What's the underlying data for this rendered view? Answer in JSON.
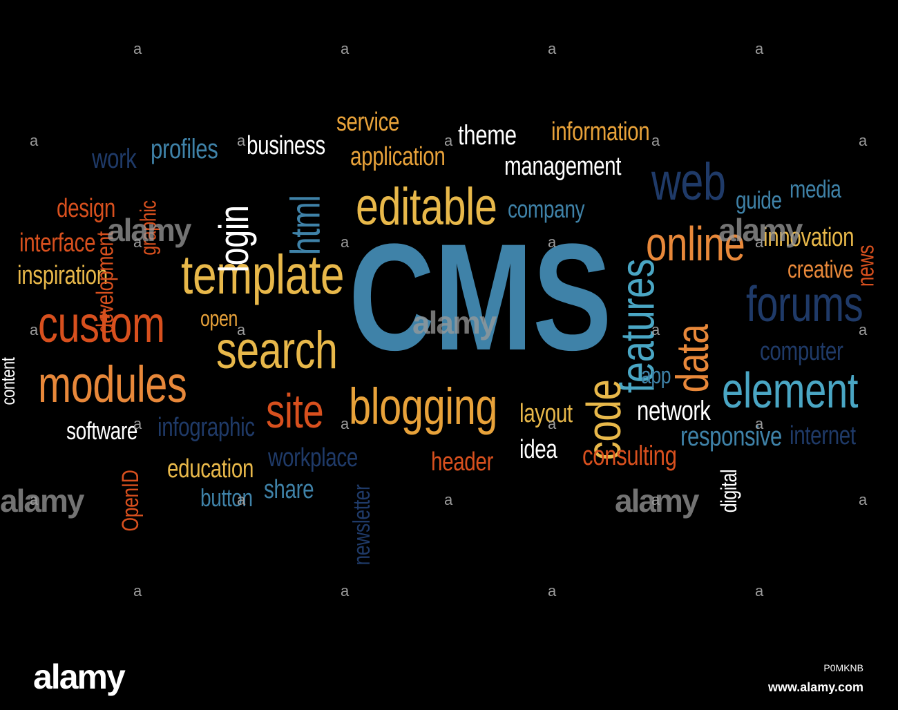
{
  "word_cloud": {
    "words": [
      {
        "text": "CMS",
        "color": "#3f82a8"
      },
      {
        "text": "template",
        "color": "#e8b84a"
      },
      {
        "text": "editable",
        "color": "#e8b84a"
      },
      {
        "text": "search",
        "color": "#e8b84a"
      },
      {
        "text": "blogging",
        "color": "#e8a23a"
      },
      {
        "text": "site",
        "color": "#d8501e"
      },
      {
        "text": "custom",
        "color": "#d8501e"
      },
      {
        "text": "modules",
        "color": "#e8883a"
      },
      {
        "text": "online",
        "color": "#e8883a"
      },
      {
        "text": "web",
        "color": "#1f3a68"
      },
      {
        "text": "forums",
        "color": "#1f3a68"
      },
      {
        "text": "element",
        "color": "#4aa6c4"
      },
      {
        "text": "features",
        "color": "#4aa6c4"
      },
      {
        "text": "code",
        "color": "#e8b84a"
      },
      {
        "text": "data",
        "color": "#e8883a"
      },
      {
        "text": "login",
        "color": "#ffffff"
      },
      {
        "text": "html",
        "color": "#3f82a8"
      },
      {
        "text": "business",
        "color": "#ffffff"
      },
      {
        "text": "service",
        "color": "#e8a23a"
      },
      {
        "text": "application",
        "color": "#e8a23a"
      },
      {
        "text": "theme",
        "color": "#ffffff"
      },
      {
        "text": "information",
        "color": "#e8a23a"
      },
      {
        "text": "management",
        "color": "#ffffff"
      },
      {
        "text": "company",
        "color": "#3f82a8"
      },
      {
        "text": "guide",
        "color": "#3f82a8"
      },
      {
        "text": "media",
        "color": "#3f82a8"
      },
      {
        "text": "innovation",
        "color": "#e8b84a"
      },
      {
        "text": "news",
        "color": "#d8501e"
      },
      {
        "text": "creative",
        "color": "#e8883a"
      },
      {
        "text": "work",
        "color": "#1f3a68"
      },
      {
        "text": "profiles",
        "color": "#3f82a8"
      },
      {
        "text": "design",
        "color": "#d8501e"
      },
      {
        "text": "interface",
        "color": "#d8501e"
      },
      {
        "text": "inspiration",
        "color": "#e8b84a"
      },
      {
        "text": "development",
        "color": "#d8501e"
      },
      {
        "text": "graphic",
        "color": "#d8501e"
      },
      {
        "text": "open",
        "color": "#e8a23a"
      },
      {
        "text": "content",
        "color": "#ffffff"
      },
      {
        "text": "software",
        "color": "#ffffff"
      },
      {
        "text": "infographic",
        "color": "#1f3a68"
      },
      {
        "text": "OpenID",
        "color": "#d8501e"
      },
      {
        "text": "education",
        "color": "#e8b84a"
      },
      {
        "text": "button",
        "color": "#3f82a8"
      },
      {
        "text": "share",
        "color": "#3f82a8"
      },
      {
        "text": "workplace",
        "color": "#1f3a68"
      },
      {
        "text": "newsletter",
        "color": "#1f3a68"
      },
      {
        "text": "header",
        "color": "#d8501e"
      },
      {
        "text": "layout",
        "color": "#e8b84a"
      },
      {
        "text": "idea",
        "color": "#ffffff"
      },
      {
        "text": "network",
        "color": "#ffffff"
      },
      {
        "text": "app",
        "color": "#3f82a8"
      },
      {
        "text": "consulting",
        "color": "#d8501e"
      },
      {
        "text": "responsive",
        "color": "#3f82a8"
      },
      {
        "text": "internet",
        "color": "#1f3a68"
      },
      {
        "text": "computer",
        "color": "#1f3a68"
      },
      {
        "text": "digital",
        "color": "#ffffff"
      }
    ]
  },
  "watermark": {
    "mark_small": "a",
    "mark_big": "alamy"
  },
  "footer": {
    "logo": "alamy",
    "image_id": "P0MKNB",
    "url": "www.alamy.com"
  }
}
